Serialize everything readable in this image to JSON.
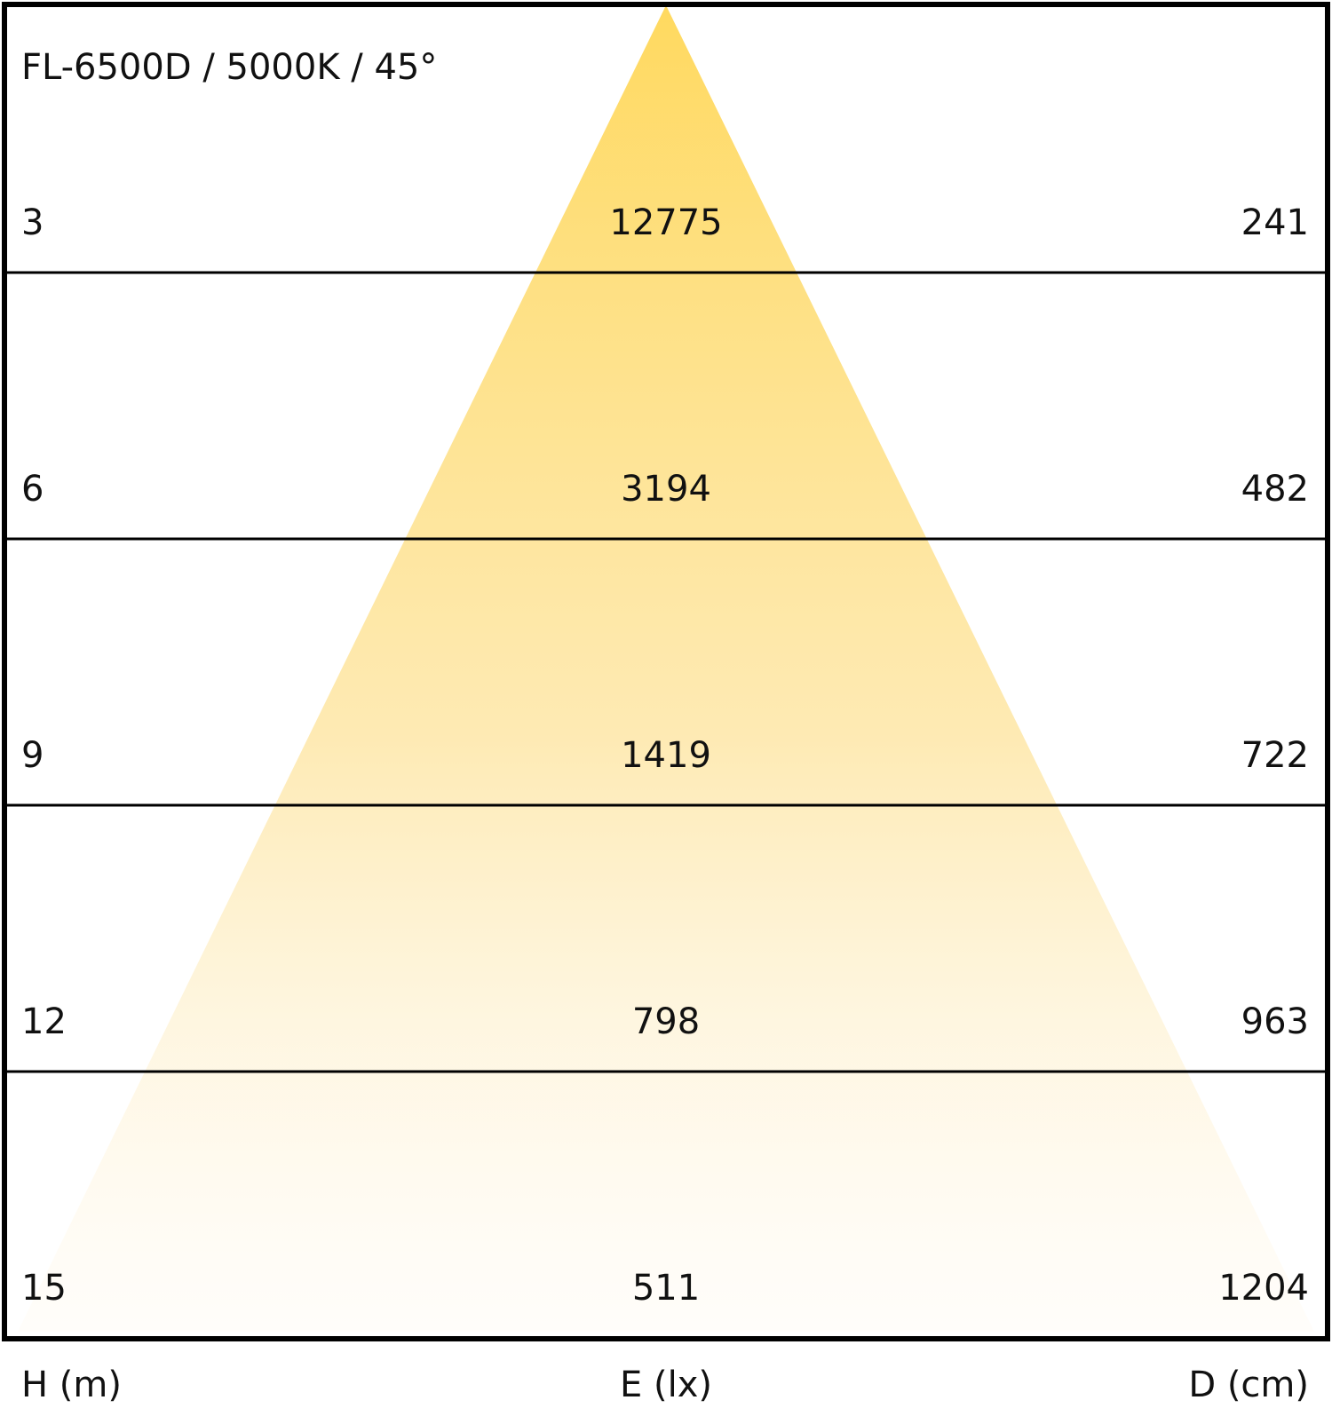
{
  "title": "FL-6500D / 5000K / 45°",
  "rows": [
    {
      "height": 3,
      "illuminance": 12775,
      "diameter": 241
    },
    {
      "height": 6,
      "illuminance": 3194,
      "diameter": 482
    },
    {
      "height": 9,
      "illuminance": 1419,
      "diameter": 722
    },
    {
      "height": 12,
      "illuminance": 798,
      "diameter": 963
    },
    {
      "height": 15,
      "illuminance": 511,
      "diameter": 1204
    }
  ],
  "footer": {
    "height": "H (m)",
    "illuminance": "E (lx)",
    "diameter": "D (cm)"
  }
}
